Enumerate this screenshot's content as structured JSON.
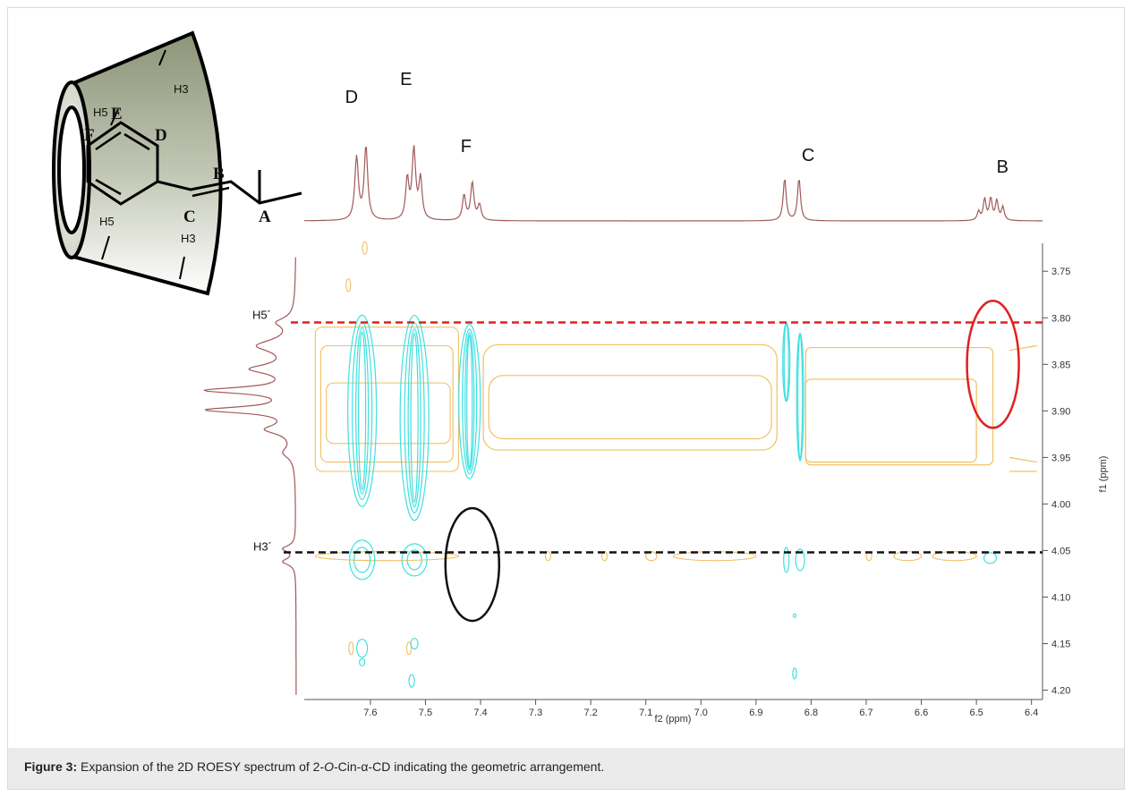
{
  "caption": {
    "label": "Figure 3:",
    "text_before": " Expansion of the 2D ROESY spectrum of 2-",
    "italic": "O",
    "text_after": "-Cin-α-CD indicating the geometric arrangement."
  },
  "structure": {
    "labels": {
      "A": "A",
      "B": "B",
      "C": "C",
      "D": "D",
      "E": "E",
      "F": "F",
      "h5_top": "H5",
      "h3_top": "H3",
      "h5_bottom": "H5",
      "h3_bottom": "H3"
    }
  },
  "colors": {
    "trace": "#a05a5a",
    "positive_contour": "#f0c060",
    "negative_contour": "#40e0e0",
    "red_line": "#e02020",
    "black_line": "#111111",
    "red_ellipse": "#e02020",
    "black_ellipse": "#111111"
  },
  "chart_data": {
    "type": "heatmap",
    "subtype": "2D ROESY NMR contour spectrum",
    "xlabel": "f2 (ppm)",
    "ylabel": "f1 (ppm)",
    "xlim": [
      7.72,
      6.38
    ],
    "ylim": [
      3.72,
      4.21
    ],
    "x_ticks": [
      "7.6",
      "7.5",
      "7.4",
      "7.3",
      "7.2",
      "7.1",
      "7.0",
      "6.9",
      "6.8",
      "6.7",
      "6.6",
      "6.5",
      "6.4"
    ],
    "y_ticks": [
      "3.75",
      "3.80",
      "3.85",
      "3.90",
      "3.95",
      "4.00",
      "4.05",
      "4.10",
      "4.15",
      "4.20"
    ],
    "f2_peaks": [
      {
        "label": "D",
        "ppm": 7.615
      },
      {
        "label": "E",
        "ppm": 7.52
      },
      {
        "label": "F",
        "ppm": 7.42
      },
      {
        "label": "C",
        "ppm": 6.835
      },
      {
        "label": "B",
        "ppm": 6.47
      }
    ],
    "f1_markers": [
      {
        "label": "H5´",
        "ppm": 3.805
      },
      {
        "label": "H3´",
        "ppm": 4.052
      }
    ],
    "annotations": [
      {
        "shape": "ellipse",
        "color": "red",
        "f2": 6.47,
        "f1": 3.85
      },
      {
        "shape": "ellipse",
        "color": "black",
        "f2": 7.415,
        "f1": 4.065
      }
    ]
  }
}
